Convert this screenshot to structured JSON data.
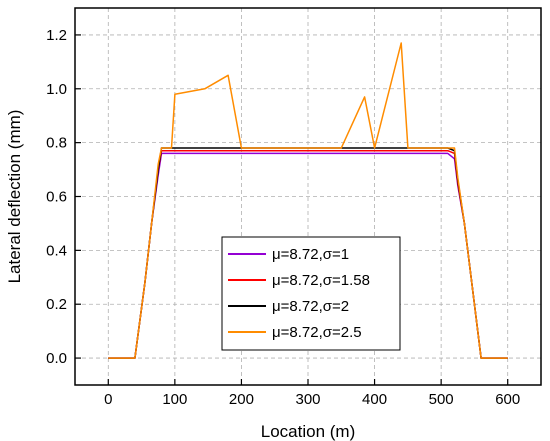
{
  "chart_data": {
    "type": "line",
    "xlabel": "Location (m)",
    "ylabel": "Lateral deflection (mm)",
    "xlim": [
      -50,
      650
    ],
    "ylim": [
      -0.1,
      1.3
    ],
    "x_ticks": [
      0,
      100,
      200,
      300,
      400,
      500,
      600
    ],
    "y_ticks": [
      0.0,
      0.2,
      0.4,
      0.6,
      0.8,
      1.0,
      1.2
    ],
    "x_tick_labels": [
      "0",
      "100",
      "200",
      "300",
      "400",
      "500",
      "600"
    ],
    "y_tick_labels": [
      "0.0",
      "0.2",
      "0.4",
      "0.6",
      "0.8",
      "1.0",
      "1.2"
    ],
    "grid": true,
    "legend_position": "center-left",
    "series": [
      {
        "name": "μ=8.72,σ=1",
        "color": "#9400d3",
        "x": [
          0,
          40,
          55,
          65,
          75,
          80,
          100,
          150,
          200,
          250,
          300,
          350,
          400,
          450,
          500,
          510,
          520,
          525,
          535,
          545,
          560,
          600
        ],
        "y": [
          0.0,
          0.0,
          0.28,
          0.5,
          0.68,
          0.76,
          0.76,
          0.76,
          0.76,
          0.76,
          0.76,
          0.76,
          0.76,
          0.76,
          0.76,
          0.76,
          0.74,
          0.64,
          0.5,
          0.3,
          0.0,
          0.0
        ]
      },
      {
        "name": "μ=8.72,σ=1.58",
        "color": "#ff0000",
        "x": [
          0,
          40,
          55,
          65,
          75,
          80,
          100,
          150,
          200,
          250,
          300,
          350,
          400,
          450,
          500,
          510,
          520,
          525,
          535,
          545,
          560,
          600
        ],
        "y": [
          0.0,
          0.0,
          0.28,
          0.5,
          0.7,
          0.77,
          0.77,
          0.77,
          0.77,
          0.77,
          0.77,
          0.77,
          0.77,
          0.77,
          0.77,
          0.77,
          0.76,
          0.65,
          0.5,
          0.3,
          0.0,
          0.0
        ]
      },
      {
        "name": "μ=8.72,σ=2",
        "color": "#000000",
        "x": [
          0,
          40,
          55,
          65,
          75,
          80,
          100,
          150,
          200,
          250,
          300,
          350,
          400,
          450,
          500,
          510,
          520,
          525,
          535,
          545,
          560,
          600
        ],
        "y": [
          0.0,
          0.0,
          0.28,
          0.5,
          0.7,
          0.78,
          0.78,
          0.78,
          0.78,
          0.78,
          0.78,
          0.78,
          0.78,
          0.78,
          0.78,
          0.78,
          0.77,
          0.66,
          0.5,
          0.3,
          0.0,
          0.0
        ]
      },
      {
        "name": "μ=8.72,σ=2.5",
        "color": "#ff8c00",
        "x": [
          0,
          40,
          55,
          65,
          75,
          80,
          95,
          100,
          145,
          180,
          200,
          250,
          300,
          350,
          385,
          400,
          440,
          450,
          500,
          520,
          525,
          535,
          545,
          560,
          600
        ],
        "y": [
          0.0,
          0.0,
          0.28,
          0.5,
          0.72,
          0.78,
          0.78,
          0.98,
          1.0,
          1.05,
          0.78,
          0.78,
          0.78,
          0.78,
          0.97,
          0.78,
          1.17,
          0.78,
          0.78,
          0.78,
          0.67,
          0.5,
          0.3,
          0.0,
          0.0
        ]
      }
    ]
  }
}
